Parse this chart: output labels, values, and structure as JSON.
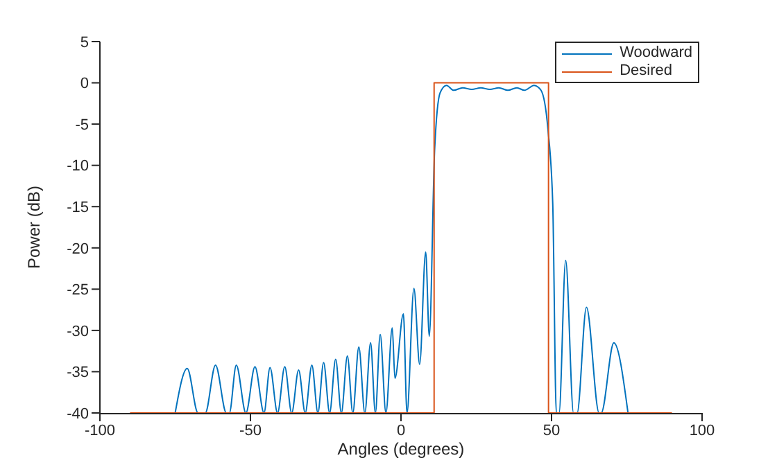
{
  "chart_data": {
    "type": "line",
    "xlabel": "Angles (degrees)",
    "ylabel": "Power (dB)",
    "xlim": [
      -100,
      100
    ],
    "xticks": [
      -100,
      -50,
      0,
      50,
      100
    ],
    "ylim": [
      -40,
      5
    ],
    "yticks": [
      5,
      0,
      -5,
      -10,
      -15,
      -20,
      -25,
      -30,
      -35,
      -40
    ],
    "grid": false,
    "legend": "top right",
    "marker": "none",
    "line_style": "solid",
    "series": [
      {
        "name": "Woodward",
        "color": "#0072bd",
        "x": [
          -75,
          -71,
          -67.4,
          -65,
          -61.6,
          -58,
          -57,
          -54.7,
          -51.5,
          -48.5,
          -45.5,
          -43.5,
          -41,
          -38.6,
          -36.3,
          -34,
          -31.8,
          -29.6,
          -27.6,
          -25.7,
          -23.7,
          -21.7,
          -19.8,
          -17.8,
          -16,
          -14,
          -12,
          -10.1,
          -8.5,
          -6.9,
          -5,
          -2.9,
          -2,
          0.8,
          2,
          4.3,
          6.2,
          8.2,
          9.4,
          11.2,
          13,
          15.1,
          17.5,
          20.5,
          23.5,
          26.5,
          29.5,
          32.5,
          35.5,
          38.5,
          41,
          44.2,
          46.5,
          48.8,
          50.4,
          51.6,
          52.5,
          54.7,
          57.3,
          58.5,
          61.6,
          65.8,
          66.5,
          70.7,
          75.4
        ],
        "values": [
          -40,
          -34.6,
          -40,
          -40,
          -34.2,
          -40,
          -40,
          -34.2,
          -40,
          -34.4,
          -40,
          -34.5,
          -40,
          -34.4,
          -40,
          -34.8,
          -40,
          -34.2,
          -40,
          -33.9,
          -40,
          -33.5,
          -40,
          -33.1,
          -40,
          -32,
          -40,
          -31.5,
          -40,
          -30.5,
          -40,
          -29.7,
          -35.8,
          -28,
          -40,
          -24.9,
          -34.1,
          -20.5,
          -30.7,
          -7.9,
          -1.2,
          -0.3,
          -0.9,
          -0.6,
          -0.8,
          -0.6,
          -0.8,
          -0.6,
          -0.9,
          -0.6,
          -0.9,
          -0.3,
          -0.9,
          -5.6,
          -14.6,
          -40,
          -40,
          -21.5,
          -40,
          -40,
          -27.2,
          -40,
          -40,
          -31.5,
          -40
        ]
      },
      {
        "name": "Desired",
        "color": "#d95319",
        "type": "step",
        "x": [
          -90,
          11,
          49,
          90
        ],
        "values": [
          -40,
          0,
          -40,
          -40
        ]
      }
    ]
  }
}
